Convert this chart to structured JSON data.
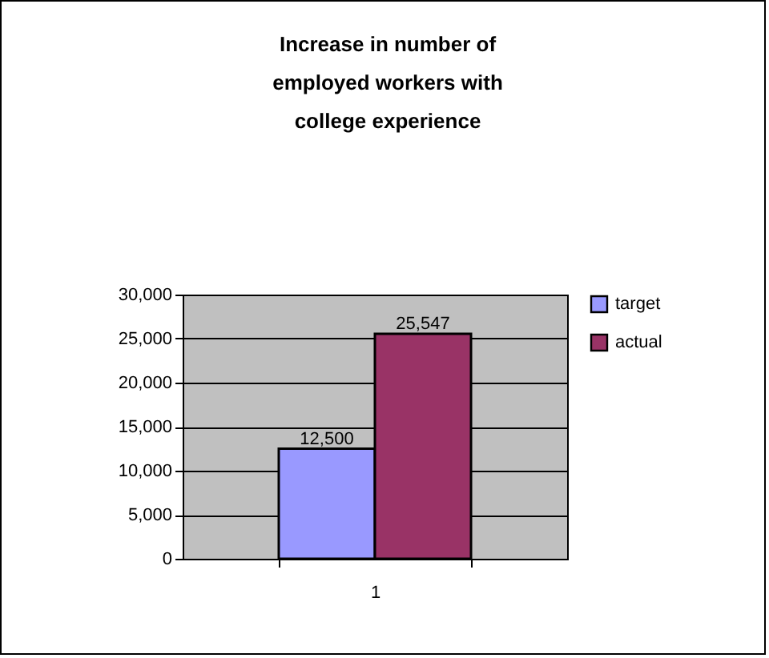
{
  "chart_data": {
    "type": "bar",
    "title": "Increase in number of employed workers with college experience",
    "categories": [
      "1"
    ],
    "series": [
      {
        "name": "target",
        "color": "#9999ff",
        "values": [
          12500
        ],
        "value_labels": [
          "12,500"
        ]
      },
      {
        "name": "actual",
        "color": "#993366",
        "values": [
          25547
        ],
        "value_labels": [
          "25,547"
        ]
      }
    ],
    "ylim": [
      0,
      30000
    ],
    "yticks": [
      {
        "value": 0,
        "label": "0"
      },
      {
        "value": 5000,
        "label": "5,000"
      },
      {
        "value": 10000,
        "label": "10,000"
      },
      {
        "value": 15000,
        "label": "15,000"
      },
      {
        "value": 20000,
        "label": "20,000"
      },
      {
        "value": 25000,
        "label": "25,000"
      },
      {
        "value": 30000,
        "label": "30,000"
      }
    ],
    "grid": "y",
    "legend": "right"
  }
}
